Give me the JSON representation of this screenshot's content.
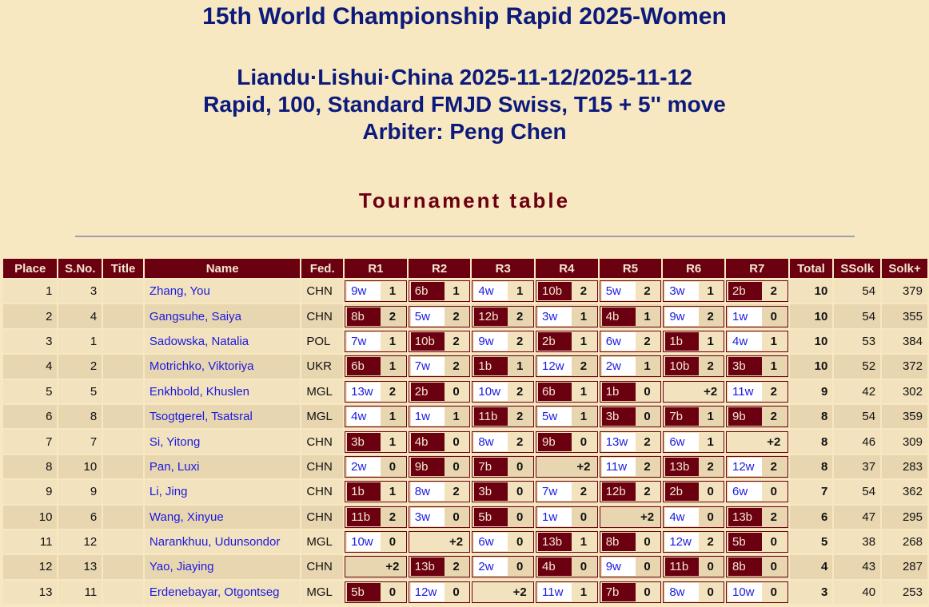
{
  "header": {
    "title": "15th World Championship Rapid 2025-Women",
    "location": "Liandu·Lishui·China 2025-11-12/2025-11-12",
    "format": "Rapid, 100, Standard FMJD Swiss, T15 + 5'' move",
    "arbiter": "Arbiter: Peng Chen",
    "section_title": "Tournament table"
  },
  "colors": {
    "header_bg": "#6b0010",
    "title": "#0c1a7c",
    "page_bg": "#f8e8c2",
    "link": "#1a1ae0"
  },
  "table": {
    "columns": [
      "Place",
      "S.No.",
      "Title",
      "Name",
      "Fed.",
      "R1",
      "R2",
      "R3",
      "R4",
      "R5",
      "R6",
      "R7",
      "Total",
      "SSolk",
      "Solk+"
    ],
    "rows": [
      {
        "place": "1",
        "sno": "3",
        "title": "",
        "name": "Zhang, You",
        "fed": "CHN",
        "rounds": [
          [
            "9w",
            "1"
          ],
          [
            "6b",
            "1"
          ],
          [
            "4w",
            "1"
          ],
          [
            "10b",
            "2"
          ],
          [
            "5w",
            "2"
          ],
          [
            "3w",
            "1"
          ],
          [
            "2b",
            "2"
          ]
        ],
        "total": "10",
        "ssolk": "54",
        "solkp": "379"
      },
      {
        "place": "2",
        "sno": "4",
        "title": "",
        "name": "Gangsuhe, Saiya",
        "fed": "CHN",
        "rounds": [
          [
            "8b",
            "2"
          ],
          [
            "5w",
            "2"
          ],
          [
            "12b",
            "2"
          ],
          [
            "3w",
            "1"
          ],
          [
            "4b",
            "1"
          ],
          [
            "9w",
            "2"
          ],
          [
            "1w",
            "0"
          ]
        ],
        "total": "10",
        "ssolk": "54",
        "solkp": "355"
      },
      {
        "place": "3",
        "sno": "1",
        "title": "",
        "name": "Sadowska, Natalia",
        "fed": "POL",
        "rounds": [
          [
            "7w",
            "1"
          ],
          [
            "10b",
            "2"
          ],
          [
            "9w",
            "2"
          ],
          [
            "2b",
            "1"
          ],
          [
            "6w",
            "2"
          ],
          [
            "1b",
            "1"
          ],
          [
            "4w",
            "1"
          ]
        ],
        "total": "10",
        "ssolk": "53",
        "solkp": "384"
      },
      {
        "place": "4",
        "sno": "2",
        "title": "",
        "name": "Motrichko, Viktoriya",
        "fed": "UKR",
        "rounds": [
          [
            "6b",
            "1"
          ],
          [
            "7w",
            "2"
          ],
          [
            "1b",
            "1"
          ],
          [
            "12w",
            "2"
          ],
          [
            "2w",
            "1"
          ],
          [
            "10b",
            "2"
          ],
          [
            "3b",
            "1"
          ]
        ],
        "total": "10",
        "ssolk": "52",
        "solkp": "372"
      },
      {
        "place": "5",
        "sno": "5",
        "title": "",
        "name": "Enkhbold, Khuslen",
        "fed": "MGL",
        "rounds": [
          [
            "13w",
            "2"
          ],
          [
            "2b",
            "0"
          ],
          [
            "10w",
            "2"
          ],
          [
            "6b",
            "1"
          ],
          [
            "1b",
            "0"
          ],
          [
            "",
            "+2"
          ],
          [
            "11w",
            "2"
          ]
        ],
        "total": "9",
        "ssolk": "42",
        "solkp": "302"
      },
      {
        "place": "6",
        "sno": "8",
        "title": "",
        "name": "Tsogtgerel, Tsatsral",
        "fed": "MGL",
        "rounds": [
          [
            "4w",
            "1"
          ],
          [
            "1w",
            "1"
          ],
          [
            "11b",
            "2"
          ],
          [
            "5w",
            "1"
          ],
          [
            "3b",
            "0"
          ],
          [
            "7b",
            "1"
          ],
          [
            "9b",
            "2"
          ]
        ],
        "total": "8",
        "ssolk": "54",
        "solkp": "359"
      },
      {
        "place": "7",
        "sno": "7",
        "title": "",
        "name": "Si, Yitong",
        "fed": "CHN",
        "rounds": [
          [
            "3b",
            "1"
          ],
          [
            "4b",
            "0"
          ],
          [
            "8w",
            "2"
          ],
          [
            "9b",
            "0"
          ],
          [
            "13w",
            "2"
          ],
          [
            "6w",
            "1"
          ],
          [
            "",
            "+2"
          ]
        ],
        "total": "8",
        "ssolk": "46",
        "solkp": "309"
      },
      {
        "place": "8",
        "sno": "10",
        "title": "",
        "name": "Pan, Luxi",
        "fed": "CHN",
        "rounds": [
          [
            "2w",
            "0"
          ],
          [
            "9b",
            "0"
          ],
          [
            "7b",
            "0"
          ],
          [
            "",
            "+2"
          ],
          [
            "11w",
            "2"
          ],
          [
            "13b",
            "2"
          ],
          [
            "12w",
            "2"
          ]
        ],
        "total": "8",
        "ssolk": "37",
        "solkp": "283"
      },
      {
        "place": "9",
        "sno": "9",
        "title": "",
        "name": "Li, Jing",
        "fed": "CHN",
        "rounds": [
          [
            "1b",
            "1"
          ],
          [
            "8w",
            "2"
          ],
          [
            "3b",
            "0"
          ],
          [
            "7w",
            "2"
          ],
          [
            "12b",
            "2"
          ],
          [
            "2b",
            "0"
          ],
          [
            "6w",
            "0"
          ]
        ],
        "total": "7",
        "ssolk": "54",
        "solkp": "362"
      },
      {
        "place": "10",
        "sno": "6",
        "title": "",
        "name": "Wang, Xinyue",
        "fed": "CHN",
        "rounds": [
          [
            "11b",
            "2"
          ],
          [
            "3w",
            "0"
          ],
          [
            "5b",
            "0"
          ],
          [
            "1w",
            "0"
          ],
          [
            "",
            "+2"
          ],
          [
            "4w",
            "0"
          ],
          [
            "13b",
            "2"
          ]
        ],
        "total": "6",
        "ssolk": "47",
        "solkp": "295"
      },
      {
        "place": "11",
        "sno": "12",
        "title": "",
        "name": "Narankhuu, Udunsondor",
        "fed": "MGL",
        "rounds": [
          [
            "10w",
            "0"
          ],
          [
            "",
            "+2"
          ],
          [
            "6w",
            "0"
          ],
          [
            "13b",
            "1"
          ],
          [
            "8b",
            "0"
          ],
          [
            "12w",
            "2"
          ],
          [
            "5b",
            "0"
          ]
        ],
        "total": "5",
        "ssolk": "38",
        "solkp": "268"
      },
      {
        "place": "12",
        "sno": "13",
        "title": "",
        "name": "Yao, Jiaying",
        "fed": "CHN",
        "rounds": [
          [
            "",
            "+2"
          ],
          [
            "13b",
            "2"
          ],
          [
            "2w",
            "0"
          ],
          [
            "4b",
            "0"
          ],
          [
            "9w",
            "0"
          ],
          [
            "11b",
            "0"
          ],
          [
            "8b",
            "0"
          ]
        ],
        "total": "4",
        "ssolk": "43",
        "solkp": "287"
      },
      {
        "place": "13",
        "sno": "11",
        "title": "",
        "name": "Erdenebayar, Otgontseg",
        "fed": "MGL",
        "rounds": [
          [
            "5b",
            "0"
          ],
          [
            "12w",
            "0"
          ],
          [
            "",
            "+2"
          ],
          [
            "11w",
            "1"
          ],
          [
            "7b",
            "0"
          ],
          [
            "8w",
            "0"
          ],
          [
            "10w",
            "0"
          ]
        ],
        "total": "3",
        "ssolk": "40",
        "solkp": "253"
      }
    ]
  }
}
